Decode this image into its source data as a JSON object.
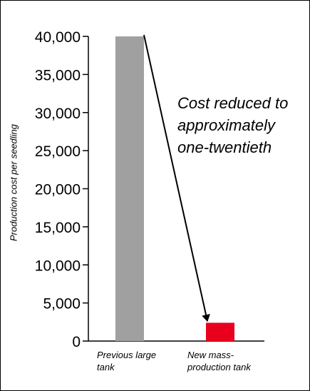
{
  "chart_data": {
    "type": "bar",
    "y_label": "Production cost per seedling",
    "annotation": "Cost reduced to approximately one-twentieth",
    "categories": [
      "Previous large tank",
      "New mass-production tank"
    ],
    "values": [
      40000,
      2400
    ],
    "colors": [
      "#a0a0a0",
      "#e8001c"
    ],
    "ylim": [
      0,
      40000
    ],
    "yticks": [
      0,
      {
        "value": 5000,
        "label": "5,000"
      },
      {
        "value": 10000,
        "label": "10,000"
      },
      {
        "value": 15000,
        "label": "15,000"
      },
      {
        "value": 20000,
        "label": "20,000"
      },
      {
        "value": 25000,
        "label": "25,000"
      },
      {
        "value": 30000,
        "label": "30,000"
      },
      {
        "value": 35000,
        "label": "35,000"
      },
      {
        "value": 40000,
        "label": "40,000"
      }
    ]
  }
}
